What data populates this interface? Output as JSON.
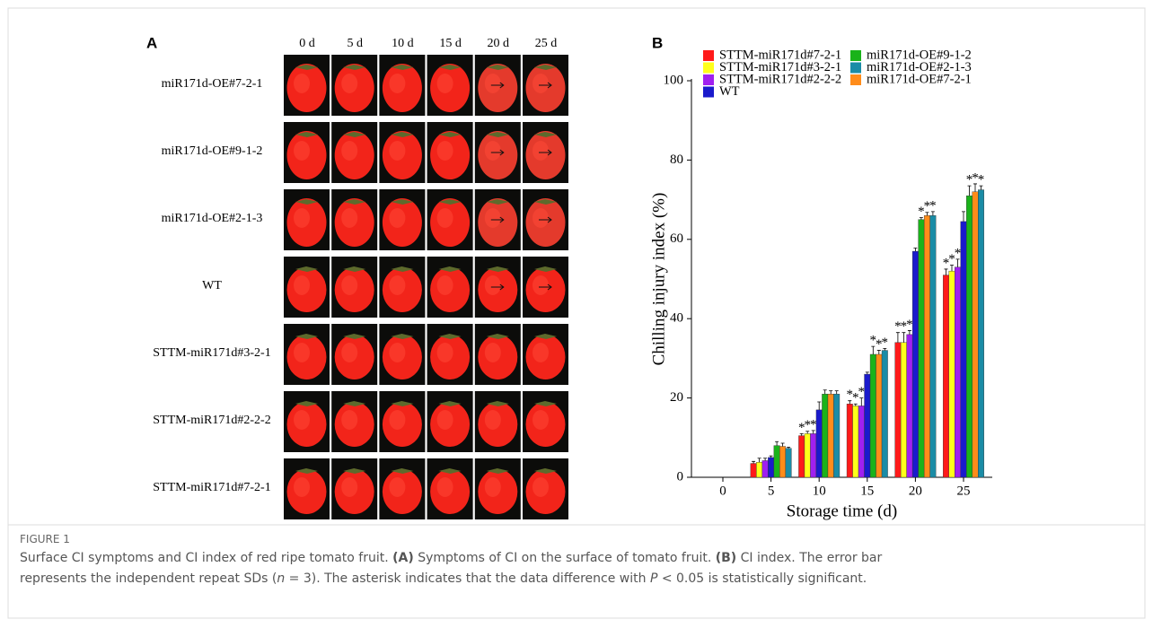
{
  "figure": {
    "label": "FIGURE 1",
    "caption": [
      [
        {
          "text": "Surface CI symptoms and CI index of red ripe tomato fruit. "
        },
        {
          "text": "(A)",
          "bold": true
        },
        {
          "text": " Symptoms of CI on the surface of tomato fruit. "
        },
        {
          "text": "(B)",
          "bold": true
        },
        {
          "text": " CI index. The error bar"
        }
      ],
      [
        {
          "text": "represents the independent repeat SDs ("
        },
        {
          "text": "n",
          "italic": true
        },
        {
          "text": " = 3). The asterisk indicates that the data difference with "
        },
        {
          "text": "P",
          "italic": true
        },
        {
          "text": " < 0.05 is statistically significant."
        }
      ]
    ]
  },
  "panel_a": {
    "label": "A",
    "columns": [
      "0 d",
      "5 d",
      "10 d",
      "15 d",
      "20 d",
      "25 d"
    ],
    "rows": [
      "miR171d-OE#7-2-1",
      "miR171d-OE#9-1-2",
      "miR171d-OE#2-1-3",
      "WT",
      "STTM-miR171d#3-2-1",
      "STTM-miR171d#2-2-2",
      "STTM-miR171d#7-2-1"
    ]
  },
  "chart_data": {
    "type": "bar",
    "panel_label": "B",
    "x_label": "Storage time (d)",
    "y_label": "Chilling injury index (%)",
    "categories": [
      "0",
      "5",
      "10",
      "15",
      "20",
      "25"
    ],
    "ylim": [
      0,
      100
    ],
    "yticks": [
      0,
      20,
      40,
      60,
      80,
      100
    ],
    "series": [
      {
        "name": "STTM-miR171d#7-2-1",
        "color": "#ff1a1a",
        "values": [
          0,
          3.5,
          10.5,
          18.5,
          34,
          51
        ],
        "errors": [
          0,
          0.5,
          0.5,
          0.8,
          2.5,
          1.5
        ],
        "labels": [
          null,
          null,
          "*",
          "*",
          "*",
          "*"
        ]
      },
      {
        "name": "STTM-miR171d#3-2-1",
        "color": "#ffff1a",
        "values": [
          0,
          3.8,
          11,
          18,
          34,
          52
        ],
        "errors": [
          0,
          1,
          0.6,
          0.5,
          2.5,
          1.5
        ],
        "labels": [
          null,
          null,
          "*",
          "*",
          "*",
          "*"
        ]
      },
      {
        "name": "STTM-miR171d#2-2-2",
        "color": "#a020f0",
        "values": [
          0,
          4.2,
          11,
          18,
          36,
          53
        ],
        "errors": [
          0,
          0.6,
          0.8,
          2,
          1,
          2
        ],
        "labels": [
          null,
          null,
          "*",
          "*",
          "*",
          "*"
        ]
      },
      {
        "name": "WT",
        "color": "#1a1acc",
        "values": [
          0,
          5,
          17,
          26,
          57,
          64.5
        ],
        "errors": [
          0,
          0.4,
          2,
          0.5,
          0.8,
          2.5
        ],
        "labels": [
          null,
          null,
          null,
          null,
          null,
          null
        ]
      },
      {
        "name": "miR171d-OE#9-1-2",
        "color": "#1ab31a",
        "values": [
          0,
          8,
          21,
          31,
          65,
          71
        ],
        "errors": [
          0,
          1,
          1,
          2,
          0.5,
          2.5
        ],
        "labels": [
          null,
          null,
          null,
          "*",
          "*",
          "*"
        ]
      },
      {
        "name": "miR171d-OE#7-2-1",
        "color": "#ff8c1a",
        "values": [
          0,
          7.8,
          21,
          31,
          66,
          72
        ],
        "errors": [
          0,
          0.8,
          0.8,
          1,
          0.8,
          2
        ],
        "labels": [
          null,
          null,
          null,
          "*",
          "*",
          "*"
        ]
      },
      {
        "name": "miR171d-OE#2-1-3",
        "color": "#1a8ca6",
        "values": [
          0,
          7.3,
          21,
          32,
          66,
          72.5
        ],
        "errors": [
          0,
          0.3,
          0.8,
          0.5,
          1,
          1
        ],
        "labels": [
          null,
          null,
          null,
          "*",
          "*",
          "*"
        ]
      }
    ]
  }
}
